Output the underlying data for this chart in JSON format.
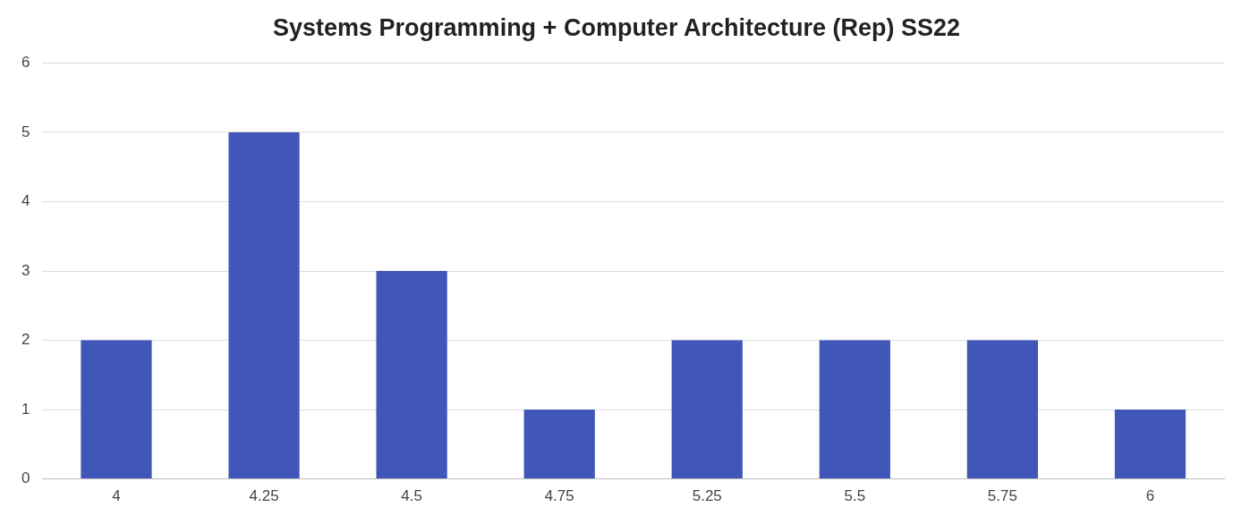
{
  "chart_data": {
    "type": "bar",
    "title": "Systems Programming + Computer Architecture (Rep) SS22",
    "categories": [
      "4",
      "4.25",
      "4.5",
      "4.75",
      "5.25",
      "5.5",
      "5.75",
      "6"
    ],
    "values": [
      2,
      5,
      3,
      1,
      2,
      2,
      2,
      1
    ],
    "color": "#4056b8",
    "ylim": [
      0,
      6
    ],
    "yticks": [
      0,
      1,
      2,
      3,
      4,
      5,
      6
    ],
    "grid": "y"
  }
}
